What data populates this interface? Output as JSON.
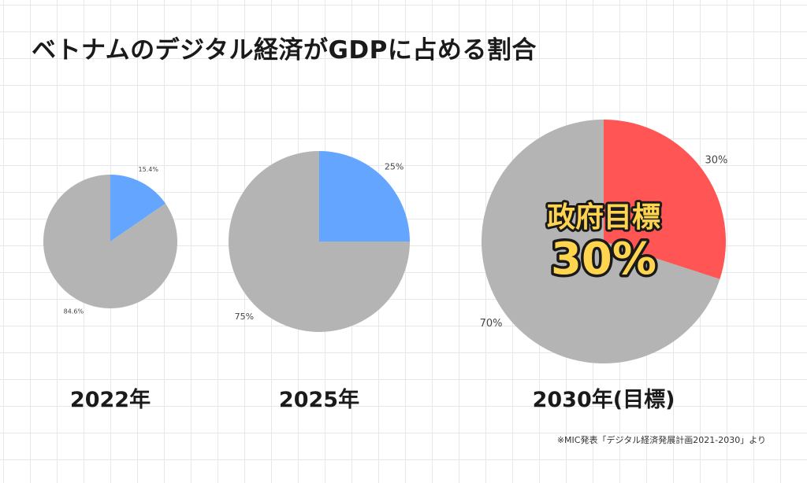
{
  "title": "ベトナムのデジタル経済がGDPに占める割合",
  "source_note": "※MIC発表「デジタル経済発展計画2021-2030」より",
  "colors": {
    "other": "#b4b4b4",
    "digital_2022": "#64a6ff",
    "digital_2025": "#64a6ff",
    "digital_2030": "#ff5555",
    "highlight_text": "#ffd54f",
    "highlight_outline": "#1a1a1a"
  },
  "chart_data": [
    {
      "type": "pie",
      "label": "2022年",
      "slices": [
        {
          "label": "15.4%",
          "value": 15.4,
          "color": "#64a6ff"
        },
        {
          "label": "84.6%",
          "value": 84.6,
          "color": "#b4b4b4"
        }
      ]
    },
    {
      "type": "pie",
      "label": "2025年",
      "slices": [
        {
          "label": "25%",
          "value": 25,
          "color": "#64a6ff"
        },
        {
          "label": "75%",
          "value": 75,
          "color": "#b4b4b4"
        }
      ]
    },
    {
      "type": "pie",
      "label": "2030年(目標)",
      "annotation": {
        "line1": "政府目標",
        "line2": "30%"
      },
      "slices": [
        {
          "label": "30%",
          "value": 30,
          "color": "#ff5555"
        },
        {
          "label": "70%",
          "value": 70,
          "color": "#b4b4b4"
        }
      ]
    }
  ]
}
